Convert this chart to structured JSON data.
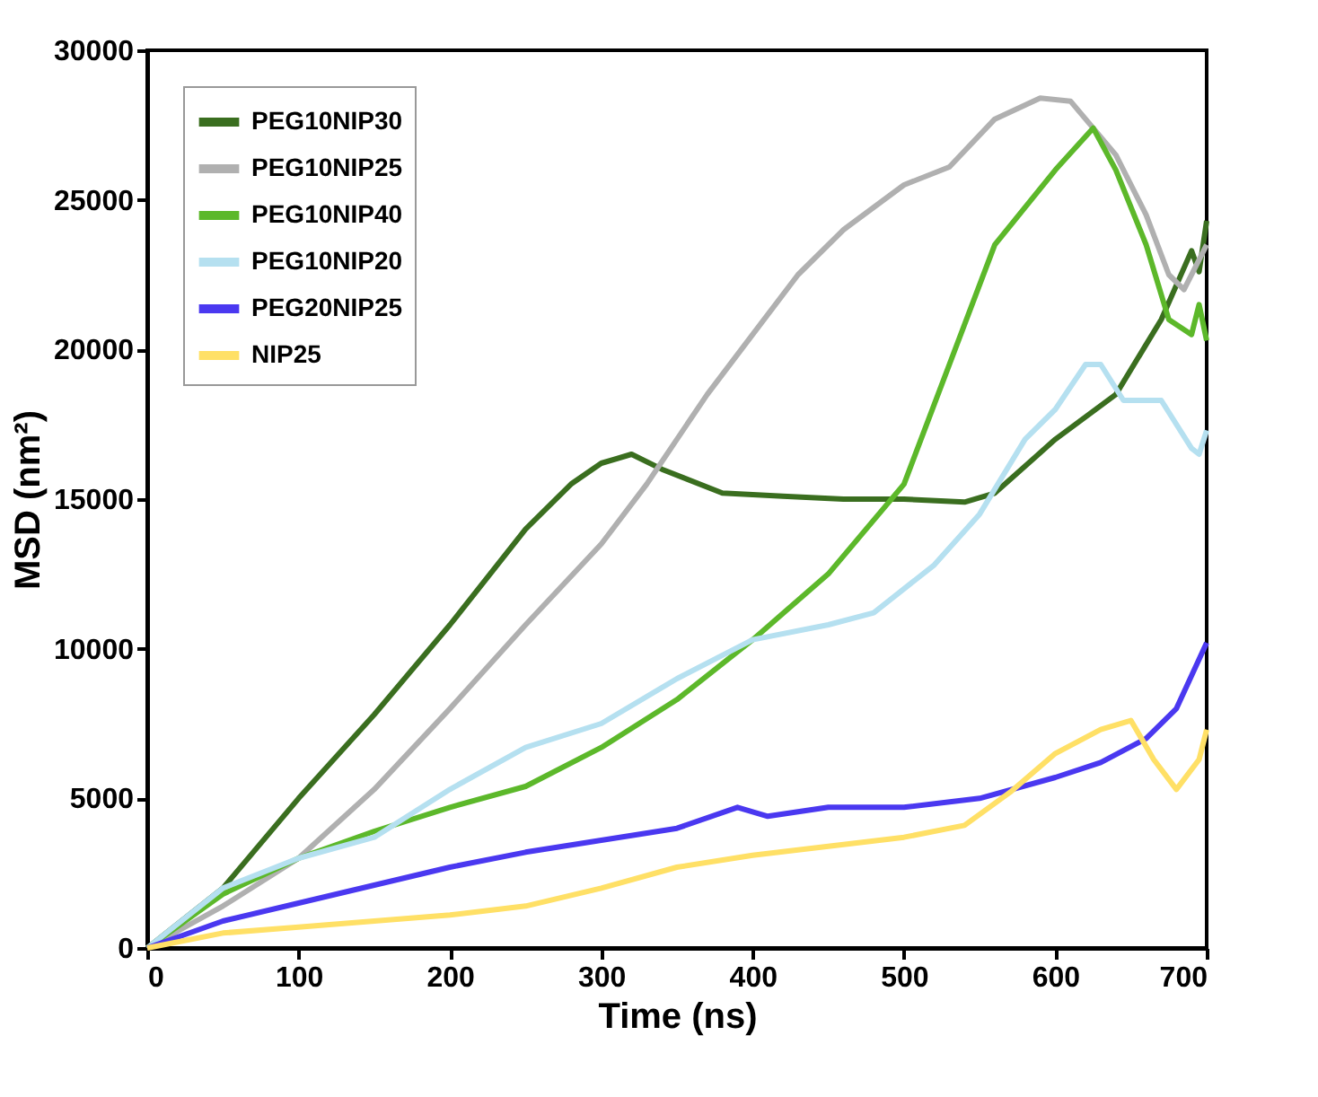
{
  "chart_data": {
    "type": "line",
    "xlabel": "Time (ns)",
    "ylabel": "MSD (nm²)",
    "xlim": [
      0,
      700
    ],
    "ylim": [
      0,
      30000
    ],
    "xticks": [
      0,
      100,
      200,
      300,
      400,
      500,
      600,
      700
    ],
    "yticks": [
      0,
      5000,
      10000,
      15000,
      20000,
      25000,
      30000
    ],
    "grid": false,
    "legend": "top left",
    "line_style": "solid",
    "marker": "none",
    "series": [
      {
        "name": "PEG10NIP30",
        "color": "#3a6e1f",
        "x": [
          0,
          50,
          100,
          150,
          200,
          250,
          280,
          300,
          320,
          340,
          380,
          420,
          460,
          500,
          540,
          560,
          600,
          640,
          670,
          690,
          695,
          700
        ],
        "values": [
          0,
          2000,
          5000,
          7800,
          10800,
          14000,
          15500,
          16200,
          16500,
          16000,
          15200,
          15100,
          15000,
          15000,
          14900,
          15200,
          17000,
          18500,
          21000,
          23300,
          22600,
          24300
        ]
      },
      {
        "name": "PEG10NIP25",
        "color": "#b0b0b0",
        "x": [
          0,
          50,
          100,
          150,
          200,
          250,
          300,
          330,
          370,
          400,
          430,
          460,
          500,
          530,
          560,
          590,
          610,
          640,
          660,
          675,
          685,
          695,
          700
        ],
        "values": [
          0,
          1400,
          3000,
          5300,
          8000,
          10800,
          13500,
          15500,
          18500,
          20500,
          22500,
          24000,
          25500,
          26100,
          27700,
          28400,
          28300,
          26500,
          24500,
          22500,
          22000,
          23000,
          23500
        ]
      },
      {
        "name": "PEG10NIP40",
        "color": "#5cb82a",
        "x": [
          0,
          50,
          100,
          150,
          200,
          250,
          300,
          350,
          400,
          450,
          500,
          530,
          560,
          600,
          625,
          640,
          660,
          675,
          690,
          695,
          700
        ],
        "values": [
          0,
          1800,
          3000,
          3900,
          4700,
          5400,
          6700,
          8300,
          10300,
          12500,
          15500,
          19500,
          23500,
          26000,
          27400,
          26000,
          23500,
          21000,
          20500,
          21500,
          20300
        ]
      },
      {
        "name": "PEG10NIP20",
        "color": "#b5e0f0",
        "x": [
          0,
          50,
          100,
          150,
          200,
          250,
          300,
          350,
          400,
          450,
          480,
          520,
          550,
          580,
          600,
          620,
          630,
          645,
          670,
          690,
          695,
          700
        ],
        "values": [
          0,
          2000,
          3000,
          3700,
          5300,
          6700,
          7500,
          9000,
          10300,
          10800,
          11200,
          12800,
          14500,
          17000,
          18000,
          19500,
          19500,
          18300,
          18300,
          16700,
          16500,
          17300
        ]
      },
      {
        "name": "PEG20NIP25",
        "color": "#4a38f0",
        "x": [
          0,
          50,
          100,
          150,
          200,
          250,
          300,
          350,
          390,
          410,
          450,
          500,
          550,
          600,
          630,
          660,
          680,
          700
        ],
        "values": [
          0,
          900,
          1500,
          2100,
          2700,
          3200,
          3600,
          4000,
          4700,
          4400,
          4700,
          4700,
          5000,
          5700,
          6200,
          7000,
          8000,
          10200
        ]
      },
      {
        "name": "NIP25",
        "color": "#ffe066",
        "x": [
          0,
          50,
          100,
          150,
          200,
          250,
          300,
          350,
          400,
          450,
          500,
          540,
          570,
          600,
          630,
          650,
          665,
          680,
          695,
          700
        ],
        "values": [
          0,
          500,
          700,
          900,
          1100,
          1400,
          2000,
          2700,
          3100,
          3400,
          3700,
          4100,
          5200,
          6500,
          7300,
          7600,
          6300,
          5300,
          6300,
          7300
        ]
      }
    ]
  }
}
